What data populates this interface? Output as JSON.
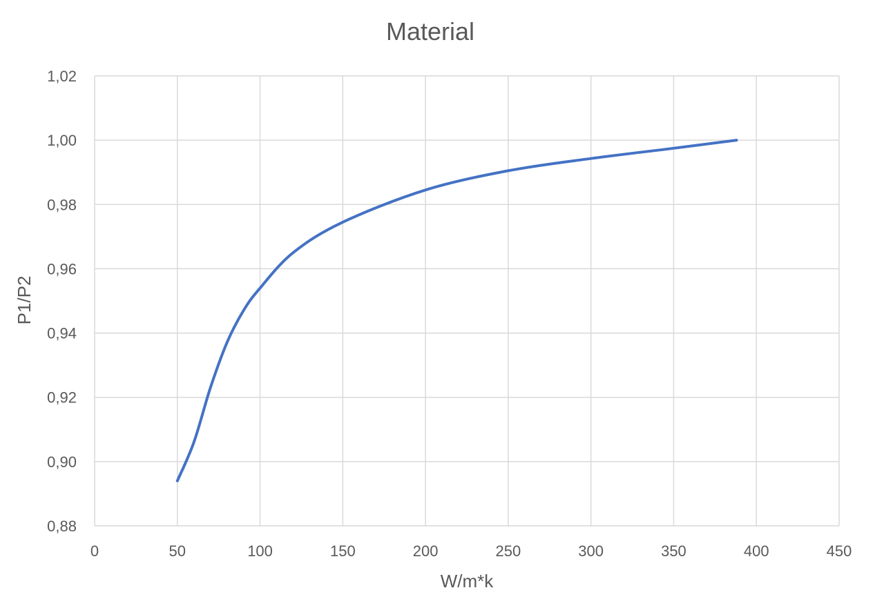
{
  "chart_data": {
    "type": "line",
    "title": "Material",
    "xlabel": "W/m*k",
    "ylabel": "P1/P2",
    "xlim": [
      0,
      450
    ],
    "ylim": [
      0.88,
      1.02
    ],
    "x_ticks": [
      "0",
      "50",
      "100",
      "150",
      "200",
      "250",
      "300",
      "350",
      "400",
      "450"
    ],
    "y_ticks": [
      "0,88",
      "0,90",
      "0,92",
      "0,94",
      "0,96",
      "0,98",
      "1,00",
      "1,02"
    ],
    "grid": true,
    "legend": "none",
    "series": [
      {
        "color": "#4472c4",
        "x": [
          50,
          60,
          70,
          80,
          90,
          100,
          120,
          150,
          200,
          250,
          300,
          350,
          388
        ],
        "y": [
          0.894,
          0.906,
          0.923,
          0.937,
          0.947,
          0.954,
          0.965,
          0.9745,
          0.9845,
          0.9905,
          0.9943,
          0.9975,
          1.0
        ]
      }
    ]
  }
}
